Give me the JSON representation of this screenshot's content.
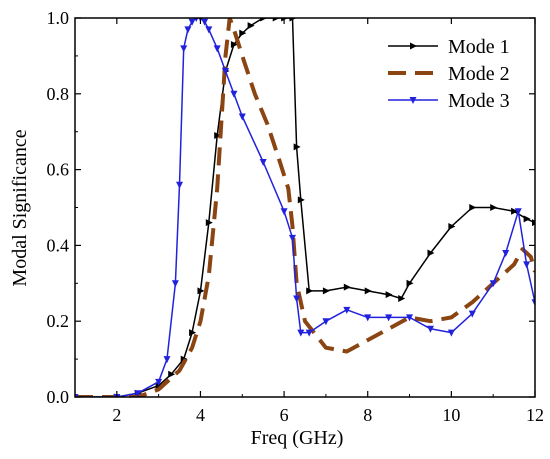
{
  "chart_data": {
    "type": "line",
    "xlabel": "Freq (GHz)",
    "ylabel": "Modal Significance",
    "xlim": [
      1,
      12
    ],
    "ylim": [
      0,
      1.0
    ],
    "x_ticks": [
      2,
      4,
      6,
      8,
      10,
      12
    ],
    "y_ticks": [
      0.0,
      0.2,
      0.4,
      0.6,
      0.8,
      1.0
    ],
    "x_tick_labels": [
      "2",
      "4",
      "6",
      "8",
      "10",
      "12"
    ],
    "y_tick_labels": [
      "0.0",
      "0.2",
      "0.4",
      "0.6",
      "0.8",
      "1.0"
    ],
    "grid": false,
    "legend_position": "top-right",
    "series": [
      {
        "name": "Mode 1",
        "color": "#000000",
        "line_style": "solid",
        "marker": "triangle-right",
        "x": [
          1.0,
          2.0,
          2.5,
          3.0,
          3.3,
          3.6,
          3.8,
          4.0,
          4.2,
          4.4,
          4.6,
          4.8,
          5.0,
          5.2,
          5.5,
          5.8,
          6.0,
          6.2,
          6.3,
          6.4,
          6.6,
          7.0,
          7.5,
          8.0,
          8.5,
          8.8,
          9.0,
          9.5,
          10.0,
          10.5,
          11.0,
          11.5,
          11.8,
          12.0
        ],
        "y": [
          0.0,
          0.0,
          0.01,
          0.03,
          0.06,
          0.1,
          0.17,
          0.28,
          0.46,
          0.69,
          0.86,
          0.93,
          0.96,
          0.98,
          1.0,
          1.0,
          1.0,
          1.0,
          0.66,
          0.52,
          0.28,
          0.28,
          0.29,
          0.28,
          0.27,
          0.26,
          0.3,
          0.38,
          0.45,
          0.5,
          0.5,
          0.49,
          0.47,
          0.46
        ]
      },
      {
        "name": "Mode 2",
        "color": "#8b4513",
        "line_style": "dashed",
        "marker": "none",
        "x": [
          1.0,
          2.0,
          2.5,
          3.0,
          3.5,
          3.8,
          4.0,
          4.2,
          4.4,
          4.6,
          4.7,
          4.8,
          5.0,
          5.3,
          5.6,
          5.9,
          6.1,
          6.2,
          6.3,
          6.5,
          7.0,
          7.5,
          8.0,
          8.5,
          9.0,
          9.5,
          10.0,
          10.5,
          11.0,
          11.5,
          11.7,
          11.9,
          12.0
        ],
        "y": [
          0.0,
          0.0,
          0.0,
          0.02,
          0.07,
          0.13,
          0.2,
          0.32,
          0.55,
          0.9,
          1.0,
          0.97,
          0.9,
          0.8,
          0.72,
          0.62,
          0.55,
          0.45,
          0.3,
          0.2,
          0.13,
          0.12,
          0.15,
          0.18,
          0.21,
          0.2,
          0.21,
          0.25,
          0.3,
          0.35,
          0.39,
          0.37,
          0.33
        ]
      },
      {
        "name": "Mode 3",
        "color": "#2222dd",
        "line_style": "solid",
        "marker": "triangle-down",
        "x": [
          1.0,
          2.0,
          2.5,
          3.0,
          3.2,
          3.4,
          3.5,
          3.6,
          3.7,
          3.8,
          3.9,
          4.0,
          4.1,
          4.2,
          4.4,
          4.6,
          4.8,
          5.0,
          5.5,
          6.0,
          6.2,
          6.3,
          6.4,
          6.6,
          7.0,
          7.5,
          8.0,
          8.5,
          9.0,
          9.5,
          10.0,
          10.5,
          11.0,
          11.3,
          11.6,
          11.8,
          12.0
        ],
        "y": [
          0.0,
          0.0,
          0.01,
          0.04,
          0.1,
          0.3,
          0.56,
          0.92,
          0.97,
          0.99,
          1.0,
          1.0,
          0.99,
          0.97,
          0.92,
          0.86,
          0.8,
          0.74,
          0.62,
          0.49,
          0.42,
          0.26,
          0.17,
          0.17,
          0.2,
          0.23,
          0.21,
          0.21,
          0.21,
          0.18,
          0.17,
          0.22,
          0.3,
          0.38,
          0.49,
          0.35,
          0.25
        ]
      }
    ]
  }
}
